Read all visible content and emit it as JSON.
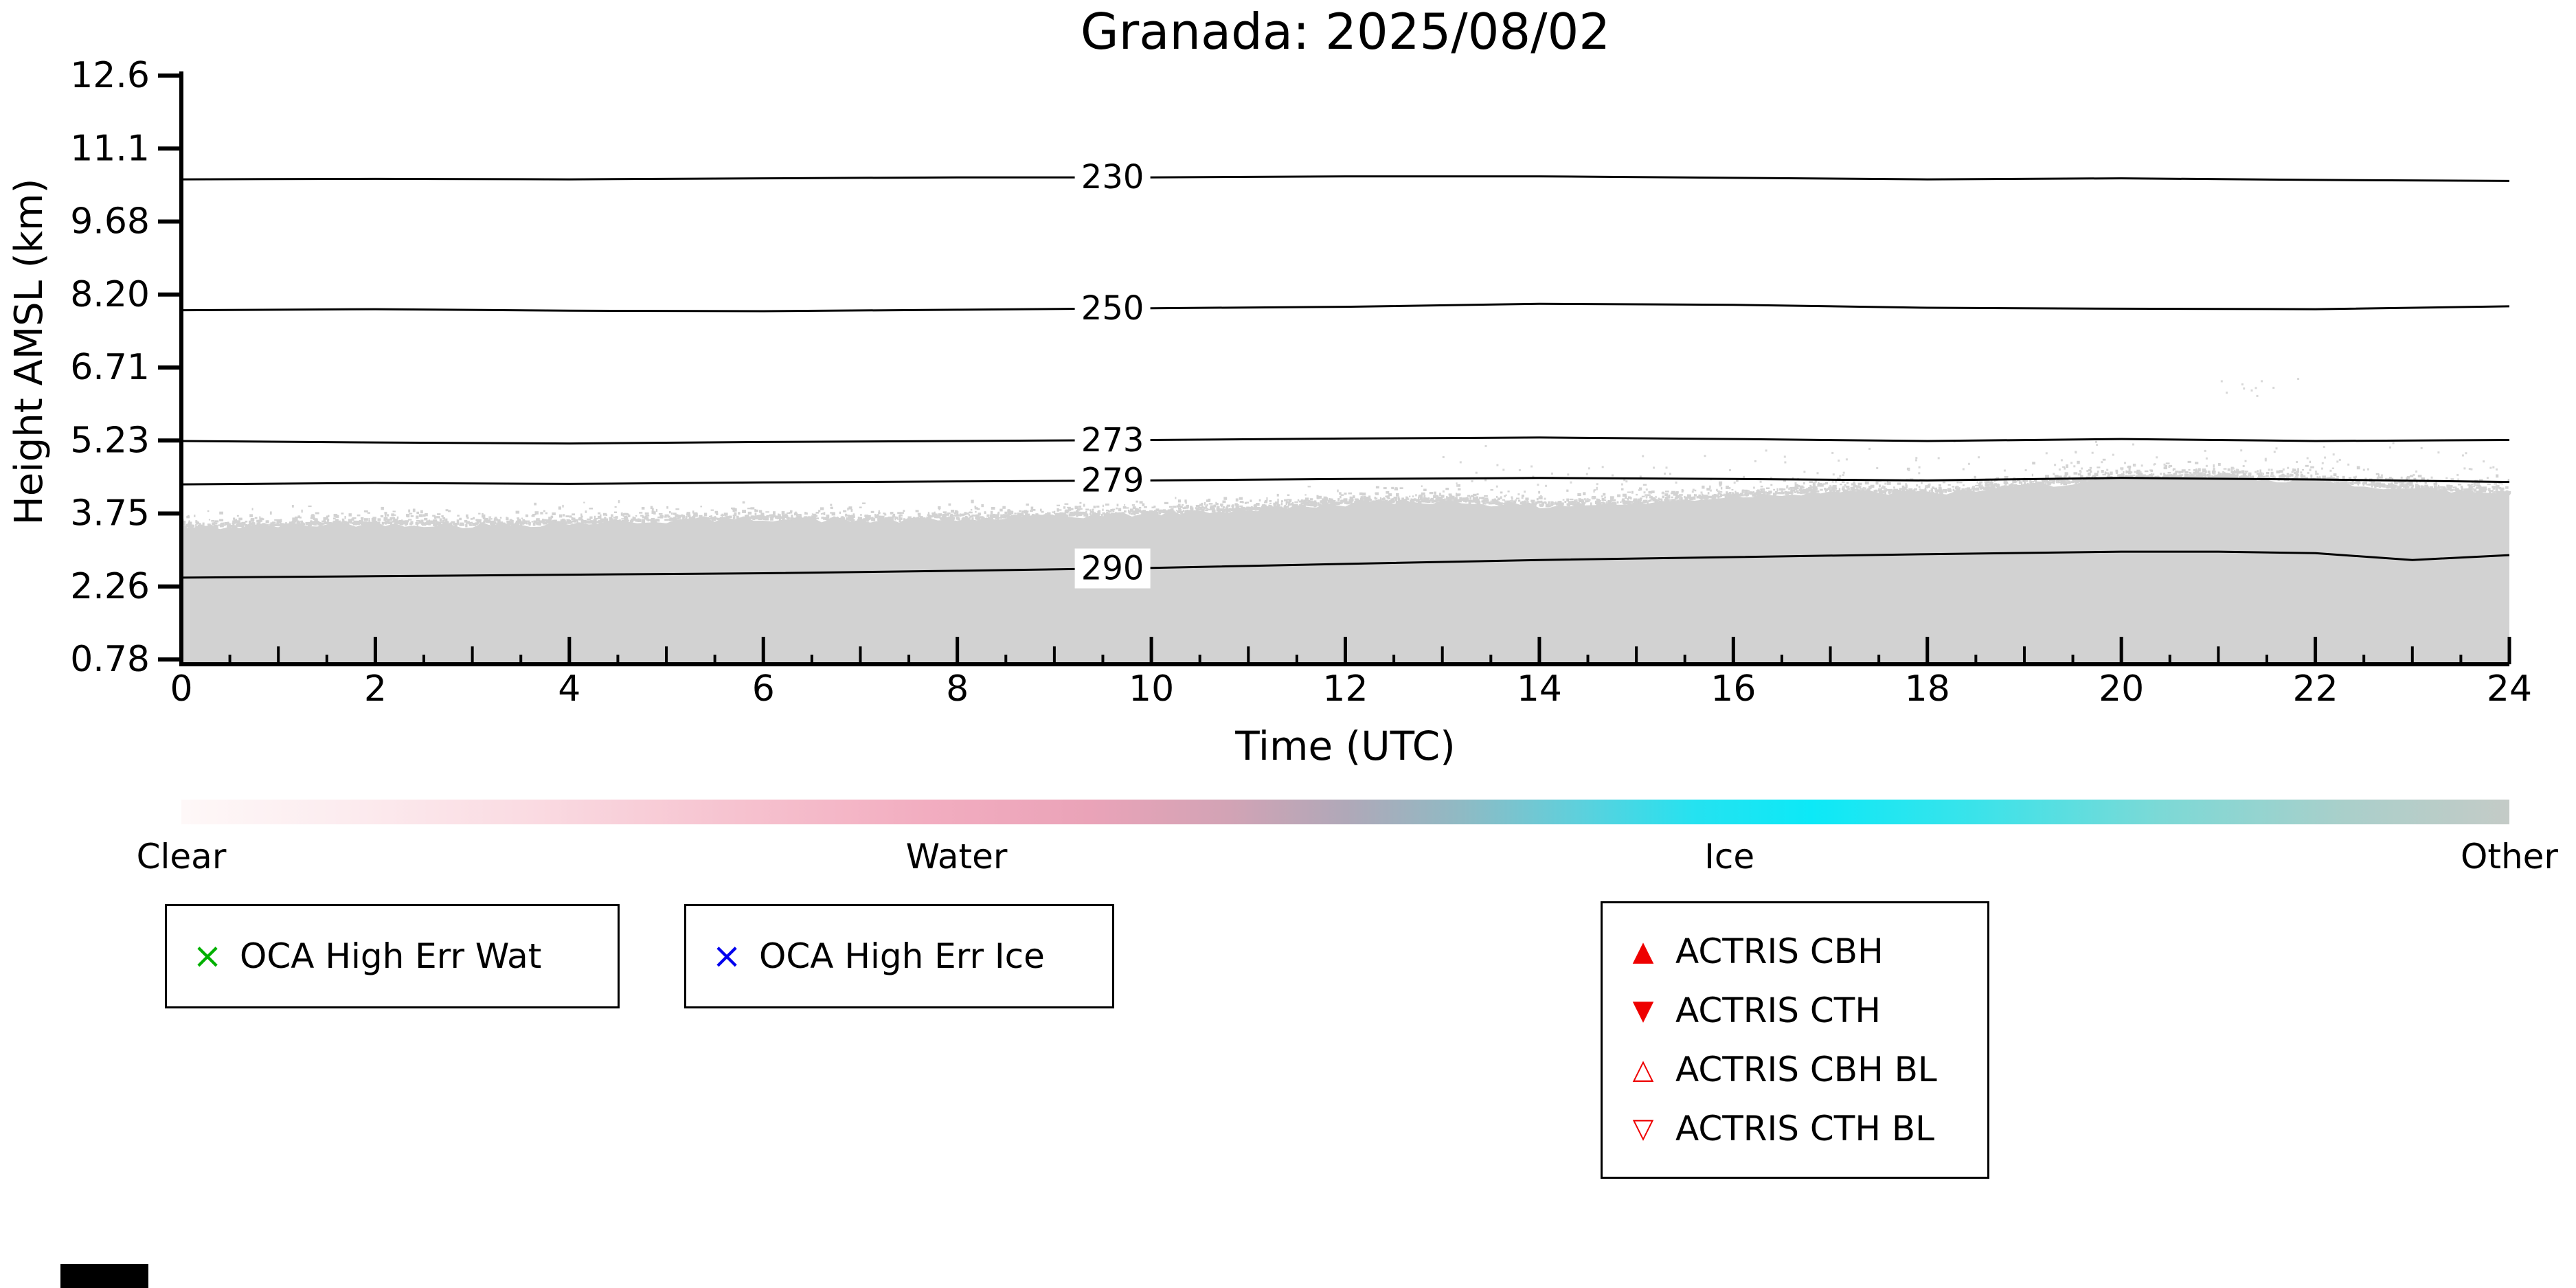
{
  "chart_data": {
    "type": "heatmap",
    "title": "Granada: 2025/08/02",
    "xlabel": "Time (UTC)",
    "ylabel": "Height AMSL (km)",
    "x_axis": {
      "min": 0,
      "max": 24,
      "major_ticks": [
        0,
        2,
        4,
        6,
        8,
        10,
        12,
        14,
        16,
        18,
        20,
        22,
        24
      ],
      "minor_tick_step_h": 0.5
    },
    "y_axis": {
      "tick_labels": [
        "12.6",
        "11.1",
        "9.68",
        "8.20",
        "6.71",
        "5.23",
        "3.75",
        "2.26",
        "0.78"
      ],
      "tick_values": [
        12.6,
        11.1,
        9.68,
        8.2,
        6.71,
        5.23,
        3.75,
        2.26,
        0.78
      ]
    },
    "contours": [
      {
        "label": "230",
        "label_t": 9.6,
        "points": [
          [
            0,
            10.5
          ],
          [
            2,
            10.51
          ],
          [
            4,
            10.5
          ],
          [
            6,
            10.52
          ],
          [
            8,
            10.54
          ],
          [
            10,
            10.54
          ],
          [
            12,
            10.56
          ],
          [
            14,
            10.56
          ],
          [
            16,
            10.53
          ],
          [
            18,
            10.5
          ],
          [
            20,
            10.52
          ],
          [
            22,
            10.49
          ],
          [
            24,
            10.47
          ]
        ]
      },
      {
        "label": "250",
        "label_t": 9.6,
        "points": [
          [
            0,
            7.88
          ],
          [
            2,
            7.9
          ],
          [
            4,
            7.87
          ],
          [
            6,
            7.86
          ],
          [
            8,
            7.89
          ],
          [
            10,
            7.92
          ],
          [
            12,
            7.95
          ],
          [
            14,
            8.01
          ],
          [
            16,
            7.99
          ],
          [
            18,
            7.93
          ],
          [
            20,
            7.91
          ],
          [
            22,
            7.9
          ],
          [
            24,
            7.96
          ]
        ]
      },
      {
        "label": "273",
        "label_t": 9.6,
        "points": [
          [
            0,
            5.22
          ],
          [
            2,
            5.19
          ],
          [
            4,
            5.17
          ],
          [
            6,
            5.2
          ],
          [
            8,
            5.22
          ],
          [
            10,
            5.24
          ],
          [
            12,
            5.27
          ],
          [
            14,
            5.29
          ],
          [
            16,
            5.26
          ],
          [
            18,
            5.22
          ],
          [
            20,
            5.26
          ],
          [
            22,
            5.22
          ],
          [
            24,
            5.24
          ]
        ]
      },
      {
        "label": "279",
        "label_t": 9.6,
        "points": [
          [
            0,
            4.34
          ],
          [
            2,
            4.37
          ],
          [
            4,
            4.35
          ],
          [
            6,
            4.38
          ],
          [
            8,
            4.4
          ],
          [
            10,
            4.42
          ],
          [
            12,
            4.45
          ],
          [
            14,
            4.47
          ],
          [
            16,
            4.45
          ],
          [
            18,
            4.42
          ],
          [
            20,
            4.47
          ],
          [
            22,
            4.44
          ],
          [
            24,
            4.39
          ]
        ]
      },
      {
        "label": "290",
        "label_t": 9.6,
        "points": [
          [
            0,
            2.44
          ],
          [
            2,
            2.47
          ],
          [
            4,
            2.5
          ],
          [
            6,
            2.53
          ],
          [
            8,
            2.58
          ],
          [
            10,
            2.64
          ],
          [
            12,
            2.72
          ],
          [
            14,
            2.8
          ],
          [
            16,
            2.86
          ],
          [
            18,
            2.92
          ],
          [
            20,
            2.97
          ],
          [
            21,
            2.97
          ],
          [
            22,
            2.94
          ],
          [
            23,
            2.8
          ],
          [
            24,
            2.9
          ]
        ]
      }
    ],
    "cloud_region": {
      "color": "#d2d2d2",
      "bottom_km": 0.78,
      "top_boundary": [
        [
          0,
          3.45
        ],
        [
          1,
          3.5
        ],
        [
          2,
          3.55
        ],
        [
          3,
          3.5
        ],
        [
          4,
          3.55
        ],
        [
          5,
          3.6
        ],
        [
          6,
          3.65
        ],
        [
          7,
          3.6
        ],
        [
          8,
          3.62
        ],
        [
          9,
          3.68
        ],
        [
          10,
          3.75
        ],
        [
          11,
          3.82
        ],
        [
          12,
          3.95
        ],
        [
          13,
          4.0
        ],
        [
          14,
          3.9
        ],
        [
          15,
          3.95
        ],
        [
          16,
          4.1
        ],
        [
          17,
          4.2
        ],
        [
          18,
          4.15
        ],
        [
          19,
          4.3
        ],
        [
          20,
          4.45
        ],
        [
          21,
          4.5
        ],
        [
          22,
          4.4
        ],
        [
          23,
          4.25
        ],
        [
          24,
          4.15
        ]
      ]
    },
    "colorbar": {
      "labels": [
        {
          "text": "Clear",
          "position": 0
        },
        {
          "text": "Water",
          "position": 0.333
        },
        {
          "text": "Ice",
          "position": 0.665
        },
        {
          "text": "Other",
          "position": 1
        }
      ],
      "gradient": [
        {
          "pos": 0,
          "color": "#fef8f8"
        },
        {
          "pos": 7,
          "color": "#fcecef"
        },
        {
          "pos": 15,
          "color": "#fadbe2"
        },
        {
          "pos": 24,
          "color": "#f6c2cf"
        },
        {
          "pos": 32,
          "color": "#f2adc0"
        },
        {
          "pos": 39,
          "color": "#eaa3b8"
        },
        {
          "pos": 45,
          "color": "#d2a3b5"
        },
        {
          "pos": 50,
          "color": "#b0a8b8"
        },
        {
          "pos": 55,
          "color": "#8fbac4"
        },
        {
          "pos": 60,
          "color": "#5ed0dc"
        },
        {
          "pos": 65,
          "color": "#25e2f0"
        },
        {
          "pos": 70,
          "color": "#0ce9f7"
        },
        {
          "pos": 77,
          "color": "#3ae3ea"
        },
        {
          "pos": 85,
          "color": "#7cd9d6"
        },
        {
          "pos": 93,
          "color": "#aacfca"
        },
        {
          "pos": 100,
          "color": "#c4cbc7"
        }
      ]
    },
    "legends": [
      {
        "items": [
          {
            "marker": "×",
            "color": "#00b000",
            "label": "OCA High Err Wat"
          }
        ]
      },
      {
        "items": [
          {
            "marker": "×",
            "color": "#0000ee",
            "label": "OCA High Err Ice"
          }
        ]
      },
      {
        "items": [
          {
            "marker": "▲",
            "color": "#ee0000",
            "label": "ACTRIS CBH"
          },
          {
            "marker": "▼",
            "color": "#ee0000",
            "label": "ACTRIS CTH"
          },
          {
            "marker": "△",
            "color": "#ee0000",
            "label": "ACTRIS CBH BL"
          },
          {
            "marker": "▽",
            "color": "#ee0000",
            "label": "ACTRIS CTH BL"
          }
        ]
      }
    ],
    "axis_color": "#000000"
  },
  "misc": {
    "corner_bar_color": "#000000"
  }
}
